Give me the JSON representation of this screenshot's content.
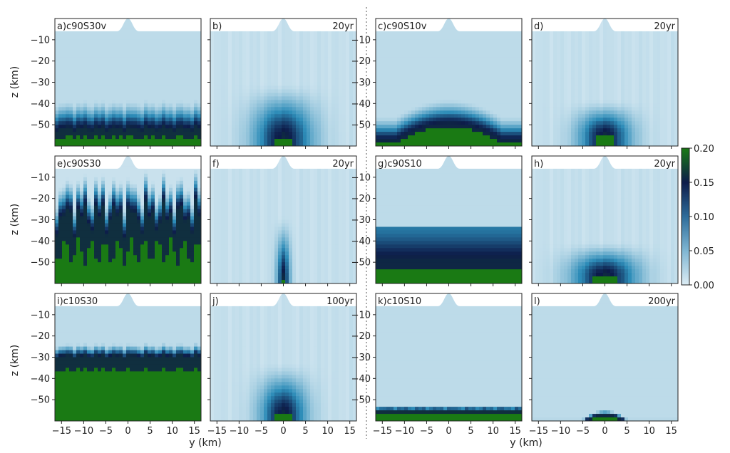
{
  "figure": {
    "xlabel": "y (km)",
    "ylabel": "z (km)",
    "x_ticks": [
      -15,
      -10,
      -5,
      0,
      5,
      10,
      15
    ],
    "y_ticks": [
      -10,
      -20,
      -30,
      -40,
      -50
    ],
    "xlim": [
      -16.5,
      16.5
    ],
    "ylim": [
      -60,
      0
    ],
    "topography": {
      "flat_top": -6,
      "peak": 0,
      "half_width_km": 2.5
    },
    "colors": {
      "light": "#dcecf4",
      "mid": "#2d8cb8",
      "dark": "#0d1c4a",
      "solid": "#1a7a14"
    }
  },
  "colorbar": {
    "ticks": [
      "0.20",
      "0.15",
      "0.10",
      "0.05",
      "0.00"
    ],
    "min": 0,
    "max": 0.2,
    "colors": [
      "#1a7a14",
      "#0d1c4a",
      "#2d6c9a",
      "#7fb6d3",
      "#dcecf4"
    ]
  },
  "chart_data": [
    {
      "type": "heatmap",
      "id": "a",
      "label": "a)",
      "name": "c90S30v",
      "time": "",
      "layout": "front",
      "front_depth": -53,
      "transition_width": 14,
      "solid_below": -56,
      "variation": 1.5
    },
    {
      "type": "heatmap",
      "id": "b",
      "label": "b)",
      "name": "",
      "time": "20yr",
      "layout": "column",
      "column_center": 0,
      "column_width": 9,
      "column_top": -30,
      "solid_cap": -56
    },
    {
      "type": "heatmap",
      "id": "c",
      "label": "c)",
      "name": "c90S10v",
      "time": "",
      "layout": "mound",
      "mound_center": 0,
      "mound_halfwidth": 12,
      "mound_peak_depth": -50,
      "base_depth": -58,
      "transition_width": 12
    },
    {
      "type": "heatmap",
      "id": "d",
      "label": "d)",
      "name": "",
      "time": "20yr",
      "layout": "column",
      "column_center": 0,
      "column_width": 8,
      "column_top": -38,
      "solid_cap": -55
    },
    {
      "type": "heatmap",
      "id": "e",
      "label": "e)",
      "name": "c90S30",
      "time": "",
      "layout": "fingers",
      "front_depth": -20,
      "solid_below": -45,
      "variation": 10
    },
    {
      "type": "heatmap",
      "id": "f",
      "label": "f)",
      "name": "",
      "time": "20yr",
      "layout": "column",
      "column_center": 0,
      "column_width": 2,
      "column_top": -28,
      "solid_cap": -58
    },
    {
      "type": "heatmap",
      "id": "g",
      "label": "g)",
      "name": "c90S10",
      "time": "",
      "layout": "layer",
      "layer_top": -33,
      "dark_band": -50,
      "solid_below": -53
    },
    {
      "type": "heatmap",
      "id": "h",
      "label": "h)",
      "name": "",
      "time": "20yr",
      "layout": "base",
      "column_center": 0,
      "column_width": 10,
      "column_top": -40,
      "solid_cap": -56
    },
    {
      "type": "heatmap",
      "id": "i",
      "label": "i)",
      "name": "c10S30",
      "time": "",
      "layout": "front",
      "front_depth": -30,
      "transition_width": 6,
      "solid_below": -36,
      "variation": 1.2
    },
    {
      "type": "heatmap",
      "id": "j",
      "label": "j)",
      "name": "",
      "time": "100yr",
      "layout": "column",
      "column_center": 0,
      "column_width": 7,
      "column_top": -32,
      "solid_cap": -57
    },
    {
      "type": "heatmap",
      "id": "k",
      "label": "k)",
      "name": "c10S10",
      "time": "",
      "layout": "front",
      "front_depth": -55,
      "transition_width": 2,
      "solid_below": -56,
      "variation": 0.2
    },
    {
      "type": "heatmap",
      "id": "l",
      "label": "l)",
      "name": "",
      "time": "200yr",
      "layout": "mound",
      "mound_center": 0,
      "mound_halfwidth": 5,
      "mound_peak_depth": -57,
      "base_depth": -61,
      "transition_width": 2
    }
  ]
}
